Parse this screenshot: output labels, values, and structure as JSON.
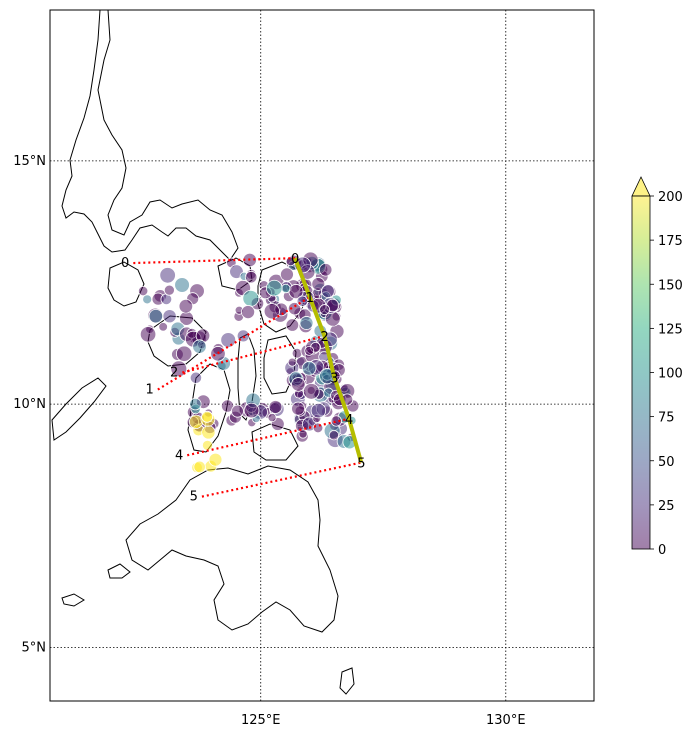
{
  "map": {
    "lon_range": [
      120.7,
      131.8
    ],
    "lat_range": [
      3.9,
      18.1
    ],
    "lon_ticks": [
      {
        "value": 125,
        "label": "125°E"
      },
      {
        "value": 130,
        "label": "130°E"
      }
    ],
    "lat_ticks": [
      {
        "value": 15,
        "label": "15°N"
      },
      {
        "value": 10,
        "label": "10°N"
      },
      {
        "value": 5,
        "label": "5°N"
      }
    ],
    "grid": "dotted",
    "track_color": "#b5bd00",
    "cross_section_color": "#ff0000",
    "track_points": [
      {
        "label": "0",
        "lon": 125.7,
        "lat": 13.0
      },
      {
        "label": "1",
        "lon": 126.0,
        "lat": 12.2
      },
      {
        "label": "2",
        "lon": 126.3,
        "lat": 11.4
      },
      {
        "label": "3",
        "lon": 126.5,
        "lat": 10.55
      },
      {
        "label": "4",
        "lon": 126.8,
        "lat": 9.7
      },
      {
        "label": "5",
        "lon": 127.05,
        "lat": 8.8
      }
    ],
    "section_starts": [
      {
        "label": "0",
        "lon": 122.4,
        "lat": 12.9
      },
      {
        "label": "1",
        "lon": 122.9,
        "lat": 10.3
      },
      {
        "label": "2",
        "lon": 123.4,
        "lat": 10.65
      },
      {
        "label": "4",
        "lon": 123.5,
        "lat": 8.95
      },
      {
        "label": "5",
        "lon": 123.8,
        "lat": 8.1
      }
    ]
  },
  "colorbar": {
    "min": 0,
    "max": 200,
    "ticks": [
      "0",
      "25",
      "50",
      "75",
      "100",
      "125",
      "150",
      "175",
      "200"
    ],
    "extend": "max",
    "colormap": "viridis",
    "alpha": 0.5
  }
}
